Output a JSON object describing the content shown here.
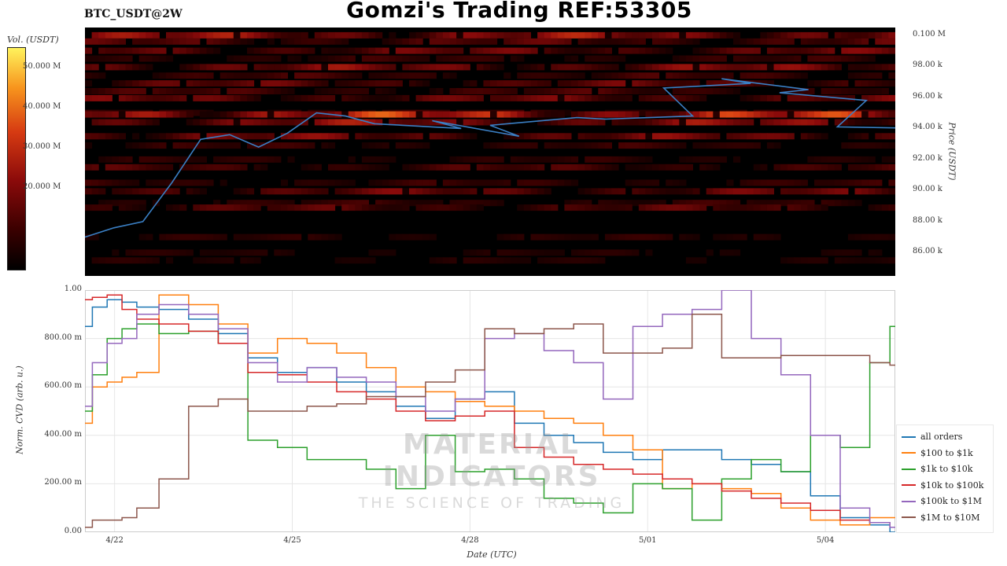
{
  "header": {
    "pair": "BTC_USDT@2W",
    "title": "Gomzi's Trading REF:53305"
  },
  "colorbar": {
    "label": "Vol. (USDT)",
    "ticks": [
      "50.000 M",
      "40.000 M",
      "30.000 M",
      "20.000 M"
    ],
    "tick_values": [
      50,
      40,
      30,
      20
    ],
    "range": [
      0,
      55
    ]
  },
  "watermark": {
    "line1": "MATERIAL INDICATORS",
    "line2": "THE SCIENCE OF TRADING"
  },
  "chart_data": [
    {
      "type": "heatmap",
      "ylabel": "Price (USDT)",
      "y_ticks": [
        "0.100 M",
        "98.00 k",
        "96.00 k",
        "94.00 k",
        "92.00 k",
        "90.00 k",
        "88.00 k",
        "86.00 k"
      ],
      "y_tick_values": [
        100000,
        98000,
        96000,
        94000,
        92000,
        90000,
        88000,
        86000
      ],
      "ylim": [
        84500,
        100500
      ],
      "xlim": [
        "4/21",
        "5/05"
      ],
      "price_series": {
        "name": "price",
        "color": "#3a7fc4",
        "x": [
          "4/21",
          "4/21",
          "4/22",
          "4/22",
          "4/23",
          "4/23",
          "4/24",
          "4/24",
          "4/25",
          "4/25",
          "4/26",
          "4/27",
          "4/27",
          "4/28",
          "4/28",
          "4/29",
          "4/30",
          "5/01",
          "5/01",
          "5/02",
          "5/02",
          "5/03",
          "5/03",
          "5/04",
          "5/04",
          "5/05"
        ],
        "y": [
          87000,
          87600,
          88000,
          90500,
          93300,
          93600,
          92800,
          93700,
          95000,
          94800,
          94300,
          94000,
          94500,
          93500,
          94200,
          94700,
          94600,
          94800,
          96600,
          96900,
          97200,
          96500,
          96300,
          95800,
          94100,
          94000
        ]
      },
      "volume_bands": [
        {
          "price": 100000,
          "vol": 30
        },
        {
          "price": 99600,
          "vol": 18
        },
        {
          "price": 99000,
          "vol": 22
        },
        {
          "price": 98500,
          "vol": 12
        },
        {
          "price": 97950,
          "vol": 26
        },
        {
          "price": 97400,
          "vol": 14
        },
        {
          "price": 96900,
          "vol": 20
        },
        {
          "price": 96400,
          "vol": 15
        },
        {
          "price": 95950,
          "vol": 22
        },
        {
          "price": 95000,
          "vol": 12
        },
        {
          "price": 94900,
          "vol": 40
        },
        {
          "price": 94400,
          "vol": 28
        },
        {
          "price": 93500,
          "vol": 24
        },
        {
          "price": 92900,
          "vol": 12
        },
        {
          "price": 92000,
          "vol": 10
        },
        {
          "price": 91500,
          "vol": 16
        },
        {
          "price": 90500,
          "vol": 12
        },
        {
          "price": 89950,
          "vol": 22
        },
        {
          "price": 89200,
          "vol": 12
        },
        {
          "price": 88900,
          "vol": 18
        },
        {
          "price": 87000,
          "vol": 10
        },
        {
          "price": 86000,
          "vol": 8
        },
        {
          "price": 85500,
          "vol": 8
        }
      ]
    },
    {
      "type": "line",
      "xlabel": "Date (UTC)",
      "ylabel": "Norm. CVD (arb. u.)",
      "x_ticks": [
        "4/22",
        "4/25",
        "4/28",
        "5/01",
        "5/04"
      ],
      "x_tick_days": [
        1,
        4,
        7,
        10,
        13
      ],
      "xlim_days": [
        0.5,
        14.18
      ],
      "y_ticks": [
        "0.00",
        "200.00 m",
        "400.00 m",
        "600.00 m",
        "800.00 m",
        "1.00"
      ],
      "y_tick_values": [
        0,
        0.2,
        0.4,
        0.6,
        0.8,
        1.0
      ],
      "ylim": [
        0,
        1.0
      ],
      "grid": true,
      "legend": "right",
      "x": [
        0.5,
        0.75,
        1.0,
        1.25,
        1.5,
        2.0,
        2.5,
        3.0,
        3.5,
        4.0,
        4.5,
        5.0,
        5.5,
        6.0,
        6.5,
        7.0,
        7.5,
        8.0,
        8.5,
        9.0,
        9.5,
        10.0,
        10.5,
        11.0,
        11.5,
        12.0,
        12.5,
        13.0,
        13.5,
        14.0,
        14.18
      ],
      "series": [
        {
          "name": "all orders",
          "color": "#1f77b4",
          "values": [
            0.85,
            0.93,
            0.96,
            0.95,
            0.93,
            0.92,
            0.88,
            0.82,
            0.72,
            0.66,
            0.68,
            0.62,
            0.58,
            0.52,
            0.47,
            0.55,
            0.58,
            0.45,
            0.4,
            0.37,
            0.33,
            0.3,
            0.34,
            0.34,
            0.3,
            0.28,
            0.25,
            0.15,
            0.06,
            0.03,
            0.0
          ]
        },
        {
          "name": "$100 to $1k",
          "color": "#ff7f0e",
          "values": [
            0.45,
            0.6,
            0.62,
            0.64,
            0.66,
            0.98,
            0.94,
            0.86,
            0.74,
            0.8,
            0.78,
            0.74,
            0.68,
            0.6,
            0.58,
            0.54,
            0.52,
            0.5,
            0.47,
            0.45,
            0.4,
            0.34,
            0.18,
            0.2,
            0.18,
            0.16,
            0.1,
            0.05,
            0.03,
            0.06,
            0.06
          ]
        },
        {
          "name": "$1k to $10k",
          "color": "#2ca02c",
          "values": [
            0.5,
            0.65,
            0.8,
            0.84,
            0.86,
            0.82,
            0.83,
            0.78,
            0.38,
            0.35,
            0.3,
            0.3,
            0.26,
            0.18,
            0.4,
            0.25,
            0.26,
            0.22,
            0.14,
            0.12,
            0.08,
            0.2,
            0.18,
            0.05,
            0.22,
            0.3,
            0.25,
            0.4,
            0.35,
            0.7,
            0.85
          ]
        },
        {
          "name": "$10k to $100k",
          "color": "#d62728",
          "values": [
            0.96,
            0.97,
            0.98,
            0.92,
            0.88,
            0.86,
            0.83,
            0.78,
            0.66,
            0.65,
            0.62,
            0.58,
            0.55,
            0.5,
            0.46,
            0.48,
            0.5,
            0.35,
            0.31,
            0.28,
            0.26,
            0.24,
            0.22,
            0.2,
            0.17,
            0.14,
            0.12,
            0.09,
            0.05,
            0.04,
            0.02
          ]
        },
        {
          "name": "$100k to $1M",
          "color": "#9467bd",
          "values": [
            0.52,
            0.7,
            0.78,
            0.8,
            0.9,
            0.94,
            0.9,
            0.84,
            0.7,
            0.62,
            0.68,
            0.64,
            0.62,
            0.56,
            0.5,
            0.55,
            0.8,
            0.82,
            0.75,
            0.7,
            0.55,
            0.85,
            0.9,
            0.92,
            1.0,
            0.8,
            0.65,
            0.4,
            0.1,
            0.04,
            0.02
          ]
        },
        {
          "name": "$1M to $10M",
          "color": "#8c564b",
          "values": [
            0.02,
            0.05,
            0.05,
            0.06,
            0.1,
            0.22,
            0.52,
            0.55,
            0.5,
            0.5,
            0.52,
            0.53,
            0.56,
            0.56,
            0.62,
            0.67,
            0.84,
            0.82,
            0.84,
            0.86,
            0.74,
            0.74,
            0.76,
            0.9,
            0.72,
            0.72,
            0.73,
            0.73,
            0.73,
            0.7,
            0.69
          ]
        }
      ]
    }
  ]
}
